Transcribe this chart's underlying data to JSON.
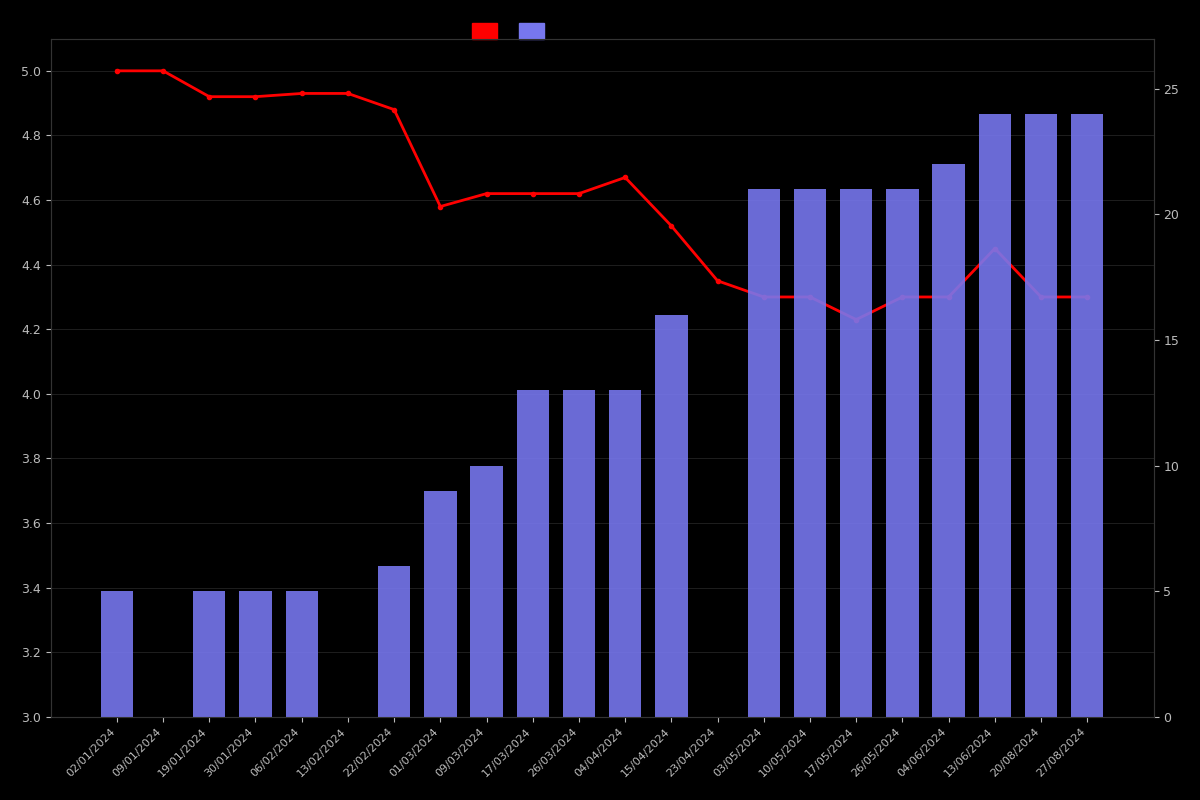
{
  "dates": [
    "02/01/2024",
    "09/01/2024",
    "19/01/2024",
    "30/01/2024",
    "06/02/2024",
    "13/02/2024",
    "22/02/2024",
    "01/03/2024",
    "09/03/2024",
    "17/03/2024",
    "26/03/2024",
    "04/04/2024",
    "15/04/2024",
    "23/04/2024",
    "03/05/2024",
    "10/05/2024",
    "17/05/2024",
    "26/05/2024",
    "04/06/2024",
    "13/06/2024",
    "20/08/2024",
    "27/08/2024"
  ],
  "bar_counts": [
    5,
    0,
    5,
    5,
    5,
    0,
    6,
    9,
    10,
    13,
    13,
    13,
    16,
    0,
    21,
    21,
    21,
    21,
    22,
    24,
    24,
    24
  ],
  "line_values": [
    5.0,
    5.0,
    4.92,
    4.92,
    4.93,
    4.93,
    4.88,
    4.58,
    4.62,
    4.62,
    4.62,
    4.67,
    4.52,
    4.35,
    4.3,
    4.3,
    4.23,
    4.3,
    4.3,
    4.45,
    4.3,
    4.3
  ],
  "background_color": "#000000",
  "bar_color": "#7777ee",
  "line_color": "#ff0000",
  "left_ylim": [
    3.0,
    5.1
  ],
  "right_ylim": [
    0,
    27
  ],
  "left_yticks": [
    3.0,
    3.2,
    3.4,
    3.6,
    3.8,
    4.0,
    4.2,
    4.4,
    4.6,
    4.8,
    5.0
  ],
  "right_yticks": [
    0,
    5,
    10,
    15,
    20,
    25
  ],
  "text_color": "#bbbbbb",
  "grid_color": "#2a2a2a"
}
